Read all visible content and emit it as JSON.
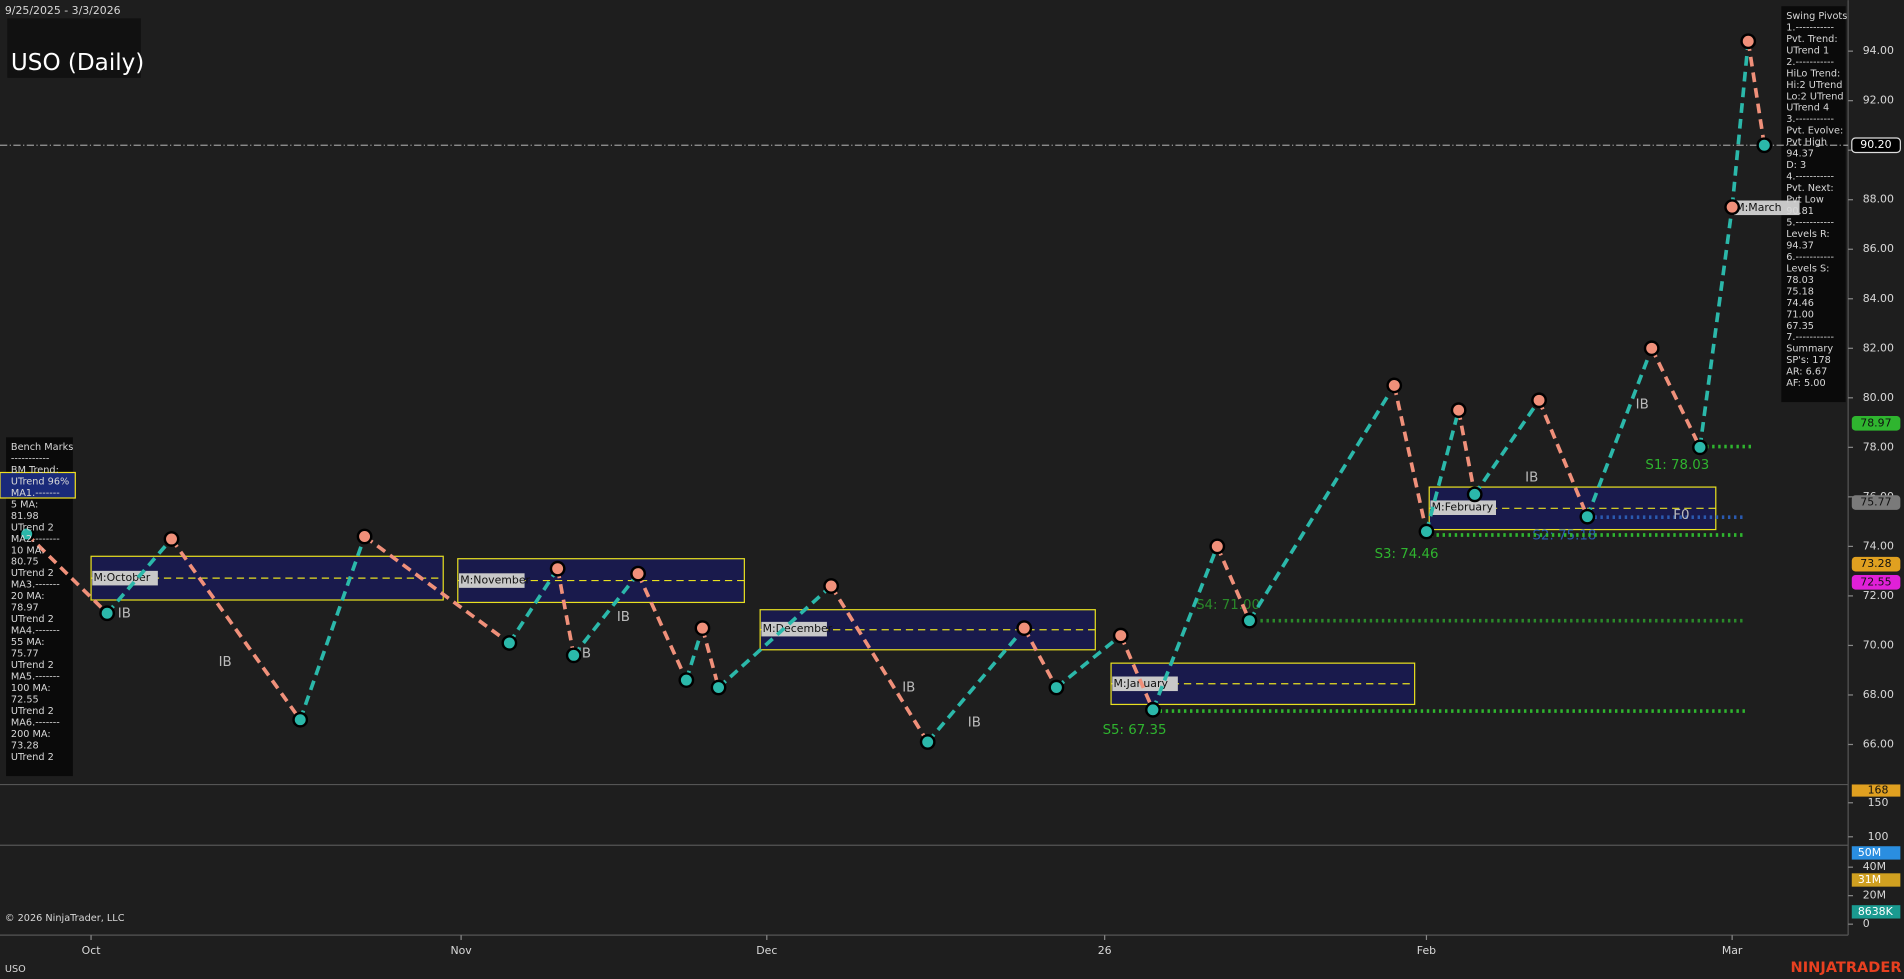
{
  "chart_data": {
    "type": "line",
    "title": "USO (Daily)",
    "date_range": "9/25/2025 - 3/3/2026",
    "x": [
      -4,
      1,
      5,
      13,
      17,
      26,
      29,
      30,
      34,
      37,
      38,
      39,
      46,
      52,
      58,
      60,
      64,
      66,
      70,
      72,
      81,
      83,
      85,
      86,
      90,
      93,
      97,
      100,
      102,
      103,
      104
    ],
    "values": [
      74.5,
      71.3,
      74.3,
      67.0,
      74.4,
      70.1,
      73.1,
      69.6,
      72.9,
      68.6,
      70.7,
      68.3,
      72.4,
      66.1,
      70.7,
      68.3,
      70.4,
      67.4,
      74.0,
      71.0,
      80.5,
      74.6,
      79.5,
      76.1,
      79.9,
      75.2,
      82.0,
      78.0,
      87.7,
      94.4,
      90.2
    ],
    "color": "#2bb8aa",
    "down_color": "#f0907a",
    "xlim": [
      -5.66,
      109.21
    ],
    "xticks": [
      {
        "value": 0,
        "label": "Oct"
      },
      {
        "value": 23,
        "label": "Nov"
      },
      {
        "value": 42,
        "label": "Dec"
      },
      {
        "value": 63,
        "label": "26"
      },
      {
        "value": 83,
        "label": "Feb"
      },
      {
        "value": 102,
        "label": "Mar"
      }
    ],
    "ylim": [
      64.43,
      96.06
    ],
    "yticks": [
      66,
      68,
      70,
      72,
      74,
      76,
      78,
      80,
      82,
      84,
      86,
      88,
      90,
      92,
      94
    ],
    "ytick_labels": [
      "66.00",
      "68.00",
      "70.00",
      "72.00",
      "74.00",
      "76.00",
      "78.00",
      "80.00",
      "82.00",
      "84.00",
      "86.00",
      "88.00",
      "90.00",
      "92.00",
      "94.00"
    ],
    "price_labels": [
      {
        "value": 90.2,
        "label": "90.20",
        "color": "#000000"
      },
      {
        "value": 78.97,
        "label": "78.97",
        "color": "#2fb52f"
      },
      {
        "value": 75.77,
        "label": "75.77",
        "color": "#7a7a7a"
      },
      {
        "value": 73.28,
        "label": "73.28",
        "color": "#e0a020"
      },
      {
        "value": 72.55,
        "label": "72.55",
        "color": "#e020d8"
      }
    ],
    "support_levels": [
      {
        "value": 78.03,
        "label": "S1: 78.03"
      },
      {
        "value": 75.18,
        "label": "S2: 75.18"
      },
      {
        "value": 74.46,
        "label": "S3: 74.46"
      },
      {
        "value": 71.0,
        "label": "S4: 71.00"
      },
      {
        "value": 67.35,
        "label": "S5: 67.35"
      }
    ],
    "month_boxes": [
      "M:October",
      "M:November",
      "M:December",
      "M:January",
      "M:February",
      "M:March"
    ],
    "marker_labels": [
      "IB",
      "IB",
      "IB",
      "IB",
      "IB",
      "IB",
      "IB",
      "IB",
      "F0"
    ],
    "indicator": {
      "ylim": [
        89.3,
        173.2
      ],
      "yticks": [
        100,
        150
      ],
      "last": 168,
      "color": "#e0a020"
    },
    "volume": {
      "ylim": [
        -6000000,
        54500000
      ],
      "yticks": [
        0,
        {
          "value": 20000000,
          "label": "20M"
        },
        {
          "value": 40000000,
          "label": "40M"
        }
      ],
      "labels": [
        {
          "value": 50000000,
          "label": "50M",
          "color": "#2a8ee0"
        },
        {
          "value": 31000000,
          "label": "31M",
          "color": "#d0a020"
        },
        {
          "value": 8638000,
          "label": "8638K",
          "color": "#1a9a90"
        }
      ]
    },
    "swing_pivots": [
      "Swing Pivots",
      "1.-----------",
      "Pvt. Trend:",
      "UTrend 1",
      "2.-----------",
      "HiLo Trend:",
      "Hi:2 UTrend",
      "Lo:2 UTrend",
      "UTrend 4",
      "3.-----------",
      "Pvt. Evolve:",
      "Pvt High",
      "94.37",
      "D: 3",
      "4.-----------",
      "Pvt. Next:",
      "Pvt Low",
      "90.81",
      "5.-----------",
      "Levels R:",
      "94.37",
      "6.-----------",
      "Levels S:",
      "78.03",
      "75.18",
      "74.46",
      "71.00",
      "67.35",
      "7.-----------",
      "Summary",
      "SP's: 178",
      "AR: 6.67",
      "AF: 5.00"
    ],
    "bench_marks": [
      "Bench Marks",
      "-----------",
      "BM Trend:",
      "UTrend 96%",
      "MA1.-------",
      "5 MA:",
      "81.98",
      "UTrend 2",
      "MA2.-------",
      "10 MA:",
      "80.75",
      "UTrend 2",
      "MA3.-------",
      "20 MA:",
      "78.97",
      "UTrend 2",
      "MA4.-------",
      "55 MA:",
      "75.77",
      "UTrend 2",
      "MA5.-------",
      "100 MA:",
      "72.55",
      "UTrend 2",
      "MA6.-------",
      "200 MA:",
      "73.28",
      "UTrend 2"
    ],
    "copyright": "© 2026 NinjaTrader, LLC",
    "instrument": "USO",
    "brand": "NINJATRADER"
  }
}
